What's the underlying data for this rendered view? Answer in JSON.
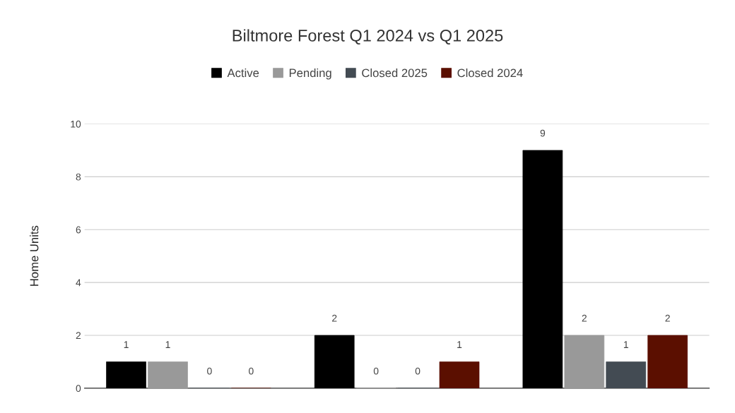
{
  "chart_data": {
    "type": "bar",
    "title": "Biltmore Forest Q1 2024 vs Q1 2025",
    "ylabel": "Home Units",
    "categories": [
      null,
      null,
      null
    ],
    "series": [
      {
        "name": "Active",
        "color": "#000000",
        "values": [
          1,
          2,
          9
        ]
      },
      {
        "name": "Pending",
        "color": "#999999",
        "values": [
          1,
          0,
          2
        ]
      },
      {
        "name": "Closed 2025",
        "color": "#434b53",
        "values": [
          0,
          0,
          1
        ]
      },
      {
        "name": "Closed 2024",
        "color": "#5b0f00",
        "values": [
          0,
          1,
          2
        ]
      }
    ],
    "ylim": [
      0,
      10
    ],
    "yticks": [
      0,
      2,
      4,
      6,
      8,
      10
    ],
    "grid": "y",
    "legend": "top",
    "data_labels": true
  }
}
